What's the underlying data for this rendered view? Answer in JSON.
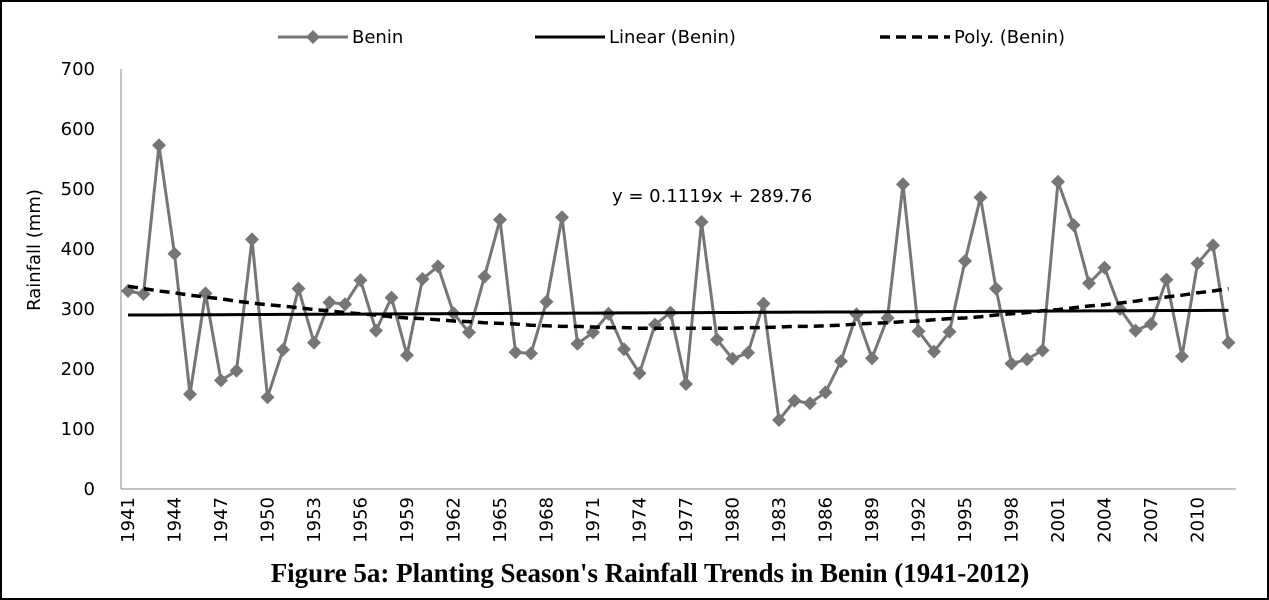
{
  "chart_data": {
    "type": "line",
    "title": "Figure 5a: Planting Season's Rainfall Trends in Benin (1941-2012)",
    "y_label": "Rainfall (mm)",
    "annotation": "y = 0.1119x + 289.76",
    "categories": [
      "1941",
      null,
      null,
      "1944",
      null,
      null,
      "1947",
      null,
      null,
      "1950",
      null,
      null,
      "1953",
      null,
      null,
      "1956",
      null,
      null,
      "1959",
      null,
      null,
      "1962",
      null,
      null,
      "1965",
      null,
      null,
      "1968",
      null,
      null,
      "1971",
      null,
      null,
      "1974",
      null,
      null,
      "1977",
      null,
      null,
      "1980",
      null,
      null,
      "1983",
      null,
      null,
      "1986",
      null,
      null,
      "1989",
      null,
      null,
      "1992",
      null,
      null,
      "1995",
      null,
      null,
      "1998",
      null,
      null,
      "2001",
      null,
      null,
      "2004",
      null,
      null,
      "2007",
      null,
      null,
      "2010",
      null,
      null
    ],
    "series": [
      {
        "name": "Benin",
        "color": "#767676",
        "marker": "diamond",
        "dashed": false,
        "values": [
          330,
          325,
          573,
          392,
          158,
          326,
          181,
          197,
          416,
          153,
          232,
          334,
          244,
          311,
          308,
          348,
          264,
          319,
          223,
          350,
          371,
          293,
          261,
          354,
          449,
          228,
          226,
          312,
          453,
          242,
          261,
          292,
          233,
          193,
          274,
          294,
          175,
          445,
          249,
          217,
          227,
          309,
          115,
          147,
          143,
          161,
          213,
          291,
          218,
          285,
          508,
          263,
          229,
          262,
          380,
          486,
          334,
          209,
          216,
          231,
          512,
          440,
          343,
          369,
          300,
          264,
          275,
          349,
          221,
          376,
          406,
          244
        ]
      },
      {
        "name": "Linear (Benin)",
        "color": "#000000",
        "marker": "none",
        "dashed": false,
        "values": [
          289.9,
          290.0,
          290.1,
          290.2,
          290.3,
          290.4,
          290.5,
          290.7,
          290.8,
          290.9,
          291.0,
          291.1,
          291.2,
          291.3,
          291.4,
          291.5,
          291.7,
          291.8,
          291.9,
          292.0,
          292.1,
          292.2,
          292.3,
          292.4,
          292.6,
          292.7,
          292.8,
          292.9,
          293.0,
          293.1,
          293.2,
          293.3,
          293.5,
          293.6,
          293.7,
          293.8,
          293.9,
          294.0,
          294.1,
          294.2,
          294.3,
          294.5,
          294.6,
          294.7,
          294.8,
          294.9,
          295.0,
          295.1,
          295.2,
          295.4,
          295.5,
          295.6,
          295.7,
          295.8,
          295.9,
          296.0,
          296.1,
          296.2,
          296.4,
          296.5,
          296.6,
          296.7,
          296.8,
          296.9,
          297.0,
          297.1,
          297.3,
          297.4,
          297.5,
          297.6,
          297.7,
          297.8
        ]
      },
      {
        "name": "Poly. (Benin)",
        "color": "#000000",
        "marker": "none",
        "dashed": true,
        "values": [
          338,
          334,
          330,
          327,
          323,
          320,
          317,
          313,
          310,
          307,
          305,
          302,
          299,
          297,
          294,
          292,
          290,
          287,
          285,
          284,
          282,
          280,
          279,
          277,
          276,
          275,
          273,
          272,
          271,
          271,
          270,
          269,
          269,
          268,
          268,
          268,
          268,
          268,
          268,
          268,
          269,
          269,
          270,
          271,
          271,
          272,
          273,
          275,
          276,
          277,
          279,
          280,
          282,
          284,
          285,
          287,
          290,
          292,
          294,
          297,
          299,
          302,
          305,
          307,
          310,
          313,
          317,
          320,
          323,
          327,
          330,
          334
        ]
      }
    ],
    "ylim": [
      0,
      700
    ],
    "yticks": [
      0,
      100,
      200,
      300,
      400,
      500,
      600,
      700
    ],
    "grid": false,
    "legend": "top"
  }
}
